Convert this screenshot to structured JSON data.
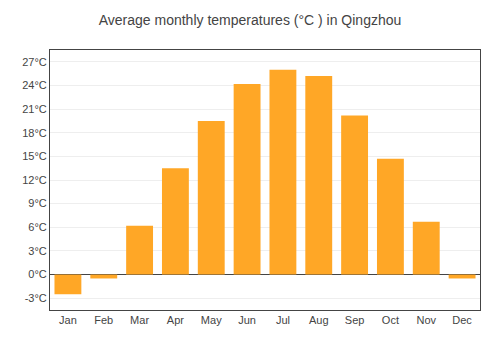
{
  "chart_data": {
    "type": "bar",
    "title": "Average monthly temperatures (°C ) in Qingzhou",
    "categories": [
      "Jan",
      "Feb",
      "Mar",
      "Apr",
      "May",
      "Jun",
      "Jul",
      "Aug",
      "Sep",
      "Oct",
      "Nov",
      "Dec"
    ],
    "values": [
      -2.5,
      -0.5,
      6.2,
      13.5,
      19.5,
      24.2,
      26.0,
      25.2,
      20.2,
      14.7,
      6.7,
      -0.5
    ],
    "color": "#FFA726",
    "ylim": [
      -4.5,
      28.5
    ],
    "yticks": [
      {
        "value": -3,
        "label": "-3°C"
      },
      {
        "value": 0,
        "label": "0°C"
      },
      {
        "value": 3,
        "label": "3°C"
      },
      {
        "value": 6,
        "label": "6°C"
      },
      {
        "value": 9,
        "label": "9°C"
      },
      {
        "value": 12,
        "label": "12°C"
      },
      {
        "value": 15,
        "label": "15°C"
      },
      {
        "value": 18,
        "label": "18°C"
      },
      {
        "value": 21,
        "label": "21°C"
      },
      {
        "value": 24,
        "label": "24°C"
      },
      {
        "value": 27,
        "label": "27°C"
      }
    ],
    "grid": true
  }
}
